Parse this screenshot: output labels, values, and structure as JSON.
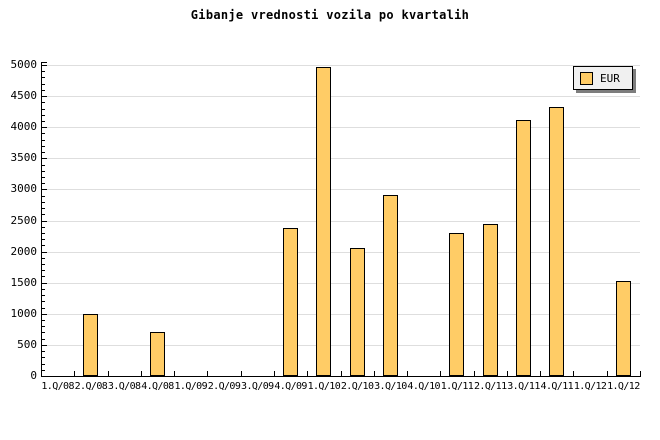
{
  "header": {
    "title": "Gibanje vrednosti vozila po kvartalih"
  },
  "legend": {
    "label": "EUR"
  },
  "colors": {
    "bar_fill": "#FFCC66",
    "bar_border": "#000000",
    "gridline": "#DEDEDE",
    "axis": "#000000",
    "legend_bg": "#F0F0F0",
    "legend_shadow": "#7D7D7D",
    "background": "#FFFFFF",
    "text": "#000000"
  },
  "chart_data": {
    "type": "bar",
    "title": "Gibanje vrednosti vozila po kvartalih",
    "categories": [
      "1.Q/08",
      "2.Q/08",
      "3.Q/08",
      "4.Q/08",
      "1.Q/09",
      "2.Q/09",
      "3.Q/09",
      "4.Q/09",
      "1.Q/10",
      "2.Q/10",
      "3.Q/10",
      "4.Q/10",
      "1.Q/11",
      "2.Q/11",
      "3.Q/11",
      "4.Q/11",
      "1.Q/12",
      "1.Q/12"
    ],
    "series": [
      {
        "name": "EUR",
        "values": [
          0,
          1000,
          0,
          710,
          0,
          0,
          0,
          2380,
          4960,
          2050,
          2910,
          0,
          2300,
          2440,
          4110,
          4330,
          0,
          1520
        ]
      }
    ],
    "xlabel": "",
    "ylabel": "",
    "ylim": [
      0,
      5000
    ],
    "ytick_step": 500,
    "yminor_step": 100,
    "grid": true,
    "legend_position": "top-right"
  }
}
